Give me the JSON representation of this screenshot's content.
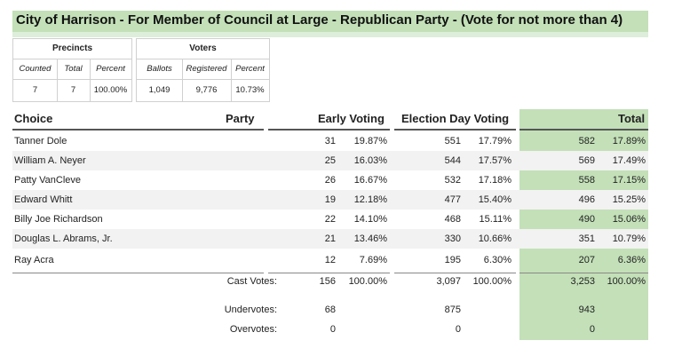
{
  "title": "City of Harrison - For Member of Council at Large - Republican Party - (Vote for not more than 4)",
  "precincts": {
    "header": "Precincts",
    "labels": [
      "Counted",
      "Total",
      "Percent"
    ],
    "values": [
      "7",
      "7",
      "100.00%"
    ]
  },
  "voters": {
    "header": "Voters",
    "labels": [
      "Ballots",
      "Registered",
      "Percent"
    ],
    "values": [
      "1,049",
      "9,776",
      "10.73%"
    ]
  },
  "columns": {
    "choice": "Choice",
    "party": "Party",
    "early": "Early Voting",
    "election_day": "Election Day Voting",
    "total": "Total"
  },
  "rows": [
    {
      "choice": "Tanner Dole",
      "early_votes": "31",
      "early_pct": "19.87%",
      "eday_votes": "551",
      "eday_pct": "17.79%",
      "total_votes": "582",
      "total_pct": "17.89%"
    },
    {
      "choice": "William A. Neyer",
      "early_votes": "25",
      "early_pct": "16.03%",
      "eday_votes": "544",
      "eday_pct": "17.57%",
      "total_votes": "569",
      "total_pct": "17.49%"
    },
    {
      "choice": "Patty VanCleve",
      "early_votes": "26",
      "early_pct": "16.67%",
      "eday_votes": "532",
      "eday_pct": "17.18%",
      "total_votes": "558",
      "total_pct": "17.15%"
    },
    {
      "choice": "Edward Whitt",
      "early_votes": "19",
      "early_pct": "12.18%",
      "eday_votes": "477",
      "eday_pct": "15.40%",
      "total_votes": "496",
      "total_pct": "15.25%"
    },
    {
      "choice": "Billy Joe Richardson",
      "early_votes": "22",
      "early_pct": "14.10%",
      "eday_votes": "468",
      "eday_pct": "15.11%",
      "total_votes": "490",
      "total_pct": "15.06%"
    },
    {
      "choice": "Douglas L. Abrams, Jr.",
      "early_votes": "21",
      "early_pct": "13.46%",
      "eday_votes": "330",
      "eday_pct": "10.66%",
      "total_votes": "351",
      "total_pct": "10.79%"
    },
    {
      "choice": "Ray Acra",
      "early_votes": "12",
      "early_pct": "7.69%",
      "eday_votes": "195",
      "eday_pct": "6.30%",
      "total_votes": "207",
      "total_pct": "6.36%"
    }
  ],
  "summary": {
    "cast": {
      "label": "Cast Votes:",
      "early_votes": "156",
      "early_pct": "100.00%",
      "eday_votes": "3,097",
      "eday_pct": "100.00%",
      "total_votes": "3,253",
      "total_pct": "100.00%"
    },
    "under": {
      "label": "Undervotes:",
      "early_votes": "68",
      "eday_votes": "875",
      "total_votes": "943"
    },
    "over": {
      "label": "Overvotes:",
      "early_votes": "0",
      "eday_votes": "0",
      "total_votes": "0"
    }
  },
  "colors": {
    "title_bg": "#c3e0b8",
    "total_col_bg": "#c3e0b8",
    "alt_row_bg": "#f2f2f2"
  }
}
